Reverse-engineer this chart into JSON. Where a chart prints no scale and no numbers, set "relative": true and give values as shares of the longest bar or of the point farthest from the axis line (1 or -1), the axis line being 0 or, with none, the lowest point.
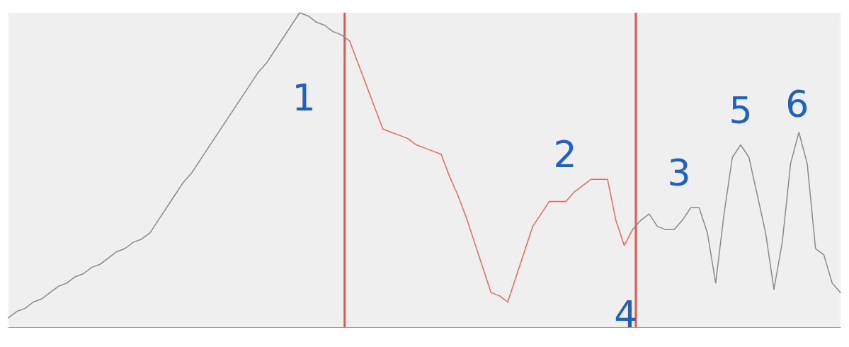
{
  "chart_data": {
    "type": "line",
    "relative": true,
    "grid": false,
    "marker": "none",
    "line_style": "solid",
    "categories": [
      null,
      null,
      null,
      null,
      null,
      null,
      null,
      null,
      null,
      null,
      null,
      null,
      null,
      null,
      null,
      null,
      null,
      null,
      null,
      null,
      null,
      null,
      null,
      null,
      null,
      null,
      null,
      null,
      null,
      null,
      null,
      null,
      null,
      null,
      null,
      null,
      null,
      null,
      null,
      null,
      null,
      null,
      null,
      null,
      null,
      null,
      null,
      null,
      null,
      null,
      null,
      null,
      null,
      null,
      null,
      null,
      null,
      null,
      null,
      null,
      null,
      null,
      null,
      null,
      null,
      null,
      null,
      null,
      null,
      null,
      null,
      null,
      null,
      null,
      null,
      null,
      null,
      null,
      null,
      null,
      null,
      null,
      null,
      null,
      null,
      null,
      null,
      null,
      null,
      null,
      null,
      null,
      null,
      null,
      null,
      null,
      null,
      null,
      null,
      null,
      null
    ],
    "series": [
      {
        "color": "#8a8a8a",
        "values": [
          0.03,
          0.05,
          0.06,
          0.08,
          0.09,
          0.11,
          0.13,
          0.14,
          0.16,
          0.17,
          0.19,
          0.2,
          0.22,
          0.24,
          0.25,
          0.27,
          0.28,
          0.3,
          0.34,
          0.38,
          0.42,
          0.46,
          0.49,
          0.53,
          0.57,
          0.61,
          0.65,
          0.69,
          0.73,
          0.77,
          0.81,
          0.84,
          0.88,
          0.92,
          0.96,
          1.0,
          0.99,
          0.97,
          0.96,
          0.94,
          0.93,
          0.91,
          null,
          null,
          null,
          null,
          null,
          null,
          null,
          null,
          null,
          null,
          null,
          null,
          null,
          null,
          null,
          null,
          null,
          null,
          null,
          null,
          null,
          null,
          null,
          null,
          null,
          null,
          null,
          null,
          null,
          null,
          null,
          null,
          null,
          null,
          null,
          null,
          null,
          null,
          null,
          null,
          null,
          null,
          null,
          null,
          null,
          null,
          null,
          null,
          null,
          null,
          null,
          null,
          null,
          null,
          null,
          null,
          null,
          null,
          null
        ]
      },
      {
        "color": "#e46a5e",
        "values": [
          null,
          null,
          null,
          null,
          null,
          null,
          null,
          null,
          null,
          null,
          null,
          null,
          null,
          null,
          null,
          null,
          null,
          null,
          null,
          null,
          null,
          null,
          null,
          null,
          null,
          null,
          null,
          null,
          null,
          null,
          null,
          null,
          null,
          null,
          null,
          null,
          null,
          null,
          null,
          null,
          null,
          0.91,
          0.84,
          0.77,
          0.7,
          0.63,
          0.62,
          0.61,
          0.6,
          0.58,
          0.57,
          0.56,
          0.55,
          0.48,
          0.42,
          0.35,
          0.27,
          0.19,
          0.11,
          0.1,
          0.08,
          0.16,
          0.24,
          0.32,
          0.36,
          0.4,
          0.4,
          0.4,
          0.43,
          0.45,
          0.47,
          0.47,
          0.47,
          0.34,
          0.26,
          0.31,
          null,
          null,
          null,
          null,
          null,
          null,
          null,
          null,
          null,
          null,
          null,
          null,
          null,
          null,
          null,
          null,
          null,
          null,
          null,
          null,
          null,
          null,
          null,
          null,
          null
        ]
      },
      {
        "color": "#8a8a8a",
        "values": [
          null,
          null,
          null,
          null,
          null,
          null,
          null,
          null,
          null,
          null,
          null,
          null,
          null,
          null,
          null,
          null,
          null,
          null,
          null,
          null,
          null,
          null,
          null,
          null,
          null,
          null,
          null,
          null,
          null,
          null,
          null,
          null,
          null,
          null,
          null,
          null,
          null,
          null,
          null,
          null,
          null,
          null,
          null,
          null,
          null,
          null,
          null,
          null,
          null,
          null,
          null,
          null,
          null,
          null,
          null,
          null,
          null,
          null,
          null,
          null,
          null,
          null,
          null,
          null,
          null,
          null,
          null,
          null,
          null,
          null,
          null,
          null,
          null,
          null,
          null,
          0.31,
          0.34,
          0.36,
          0.32,
          0.31,
          0.31,
          0.34,
          0.38,
          0.38,
          0.3,
          0.14,
          0.36,
          0.54,
          0.58,
          0.54,
          0.42,
          0.3,
          0.12,
          0.27,
          0.52,
          0.62,
          0.52,
          0.25,
          0.23,
          0.14,
          0.11
        ]
      }
    ],
    "annotations": [
      "1",
      "2",
      "3",
      "4",
      "5",
      "6"
    ]
  }
}
